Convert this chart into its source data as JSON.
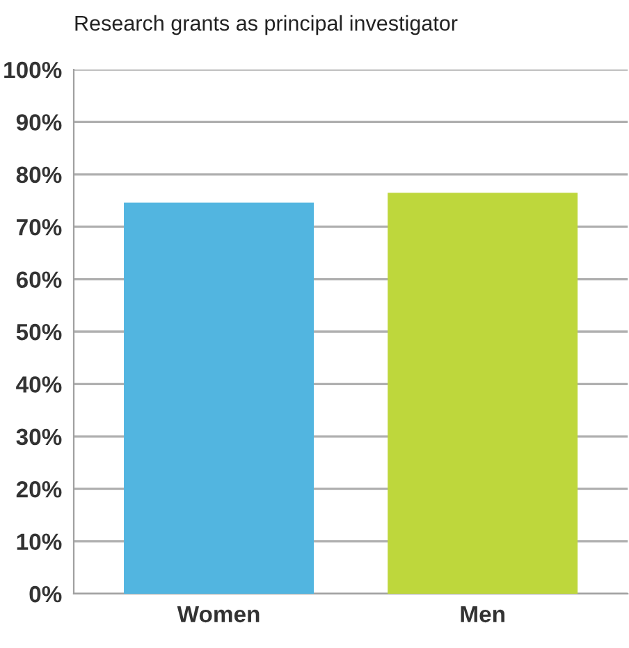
{
  "chart_data": {
    "type": "bar",
    "title": "Research grants as principal investigator",
    "categories": [
      "Women",
      "Men"
    ],
    "values": [
      74.6,
      76.5
    ],
    "colors": [
      "#52b5e0",
      "#bed73c"
    ],
    "ylim": [
      0,
      100
    ],
    "yticks": [
      {
        "value": 0,
        "label": "0%"
      },
      {
        "value": 10,
        "label": "10%"
      },
      {
        "value": 20,
        "label": "20%"
      },
      {
        "value": 30,
        "label": "30%"
      },
      {
        "value": 40,
        "label": "40%"
      },
      {
        "value": 50,
        "label": "50%"
      },
      {
        "value": 60,
        "label": "60%"
      },
      {
        "value": 70,
        "label": "70%"
      },
      {
        "value": 80,
        "label": "80%"
      },
      {
        "value": 90,
        "label": "90%"
      },
      {
        "value": 100,
        "label": "100%"
      }
    ],
    "grid": "y"
  }
}
